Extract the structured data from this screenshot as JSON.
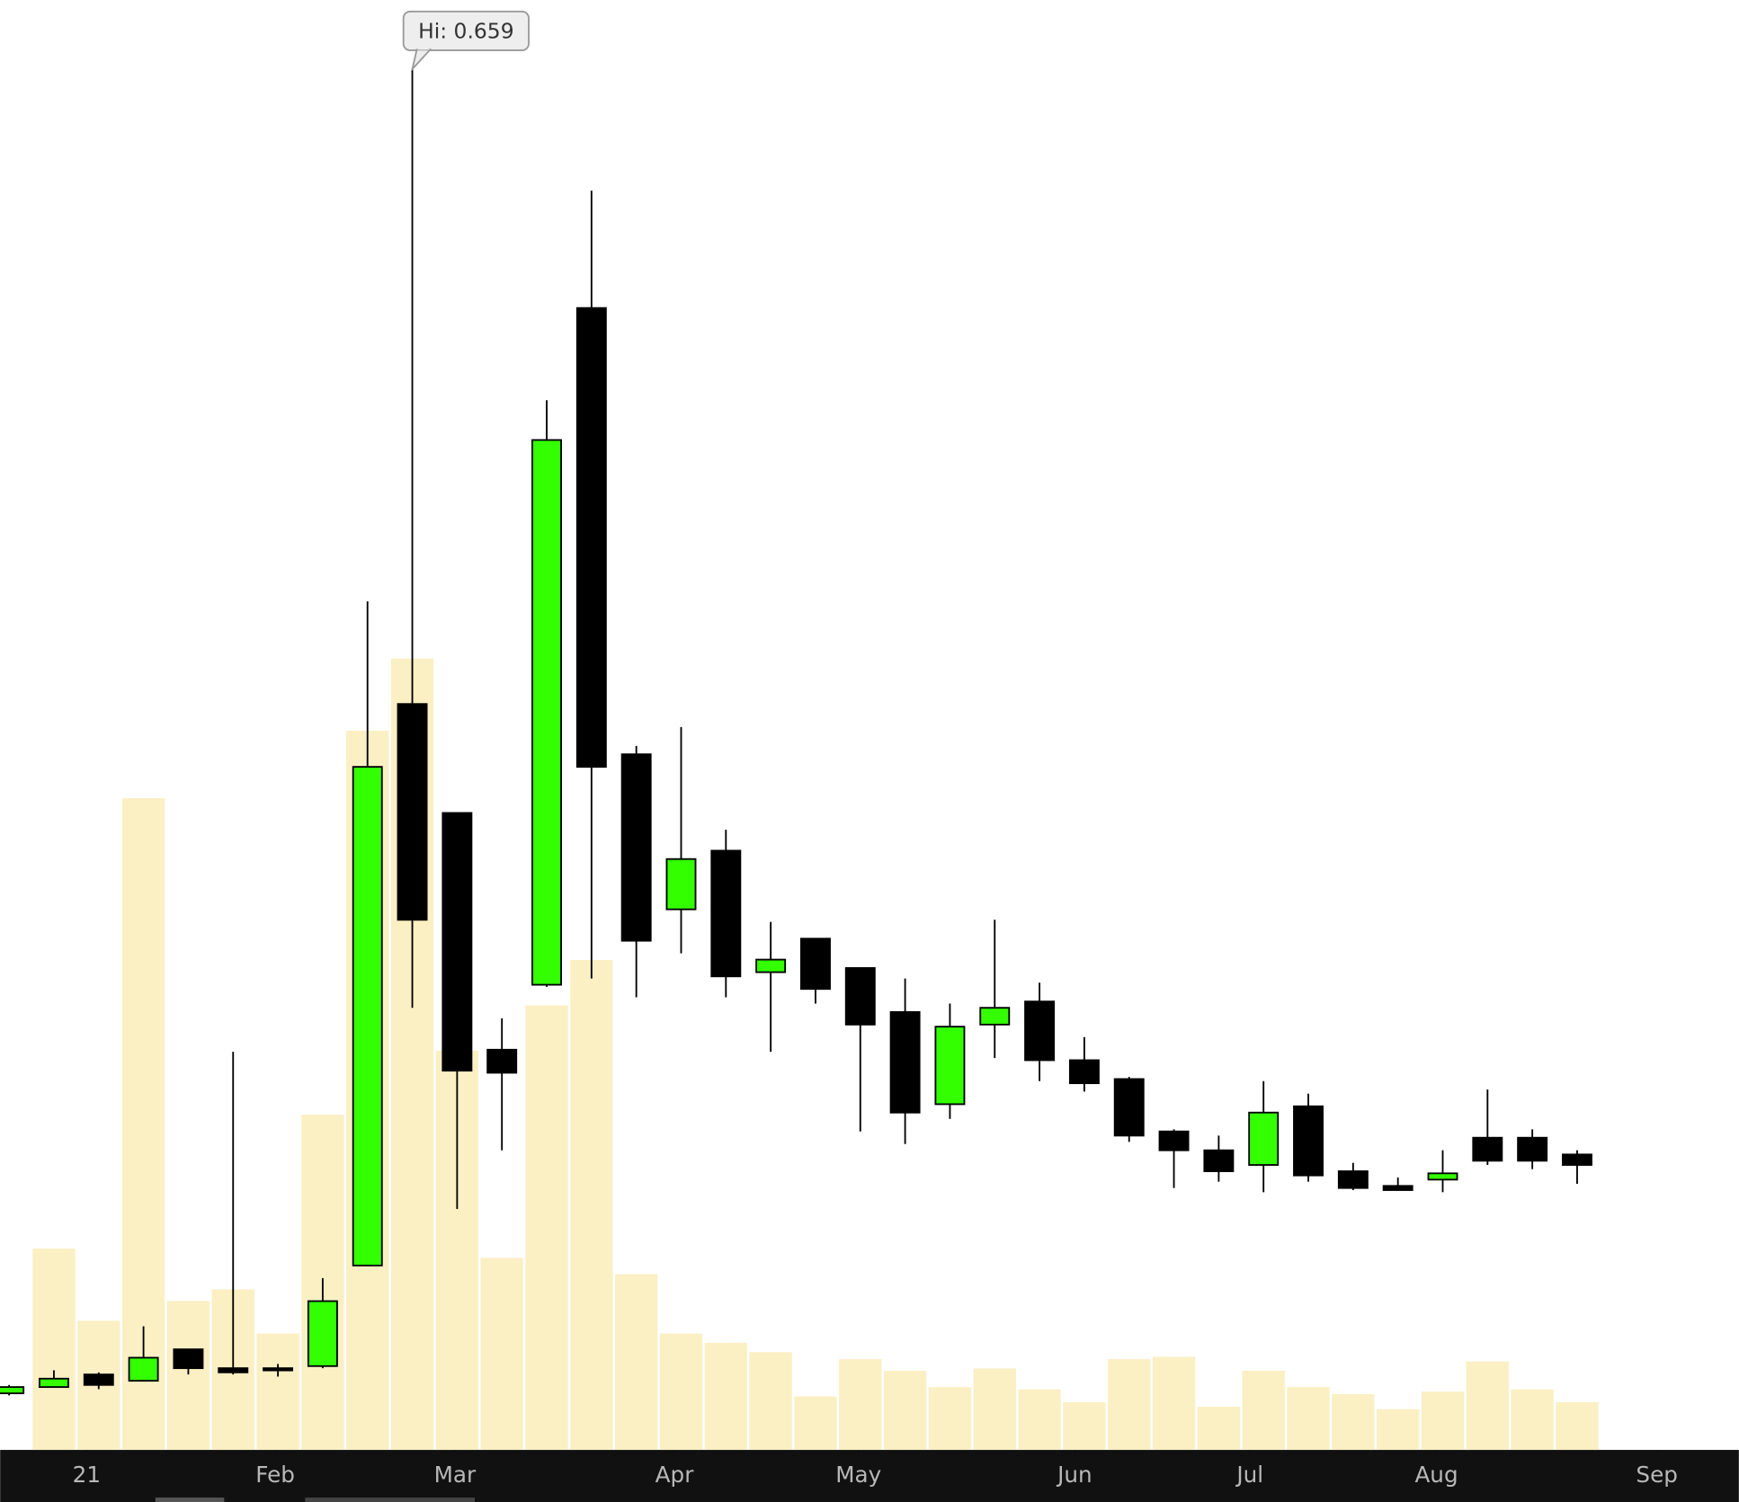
{
  "chart_data": {
    "type": "candlestick",
    "annotation": "Hi: 0.659",
    "x": [
      0,
      1,
      2,
      3,
      4,
      5,
      6,
      7,
      8,
      9,
      10,
      11,
      12,
      13,
      14,
      15,
      16,
      17,
      18,
      19,
      20,
      21,
      22,
      23,
      24,
      25,
      26,
      27,
      28,
      29,
      30,
      31,
      32,
      33,
      34,
      35
    ],
    "open": [
      0.027,
      0.03,
      0.036,
      0.033,
      0.048,
      0.039,
      0.039,
      0.04,
      0.088,
      0.356,
      0.304,
      0.191,
      0.222,
      0.545,
      0.332,
      0.258,
      0.286,
      0.228,
      0.244,
      0.23,
      0.209,
      0.165,
      0.203,
      0.214,
      0.186,
      0.177,
      0.152,
      0.143,
      0.136,
      0.164,
      0.133,
      0.126,
      0.129,
      0.149,
      0.149,
      0.141
    ],
    "high": [
      0.031,
      0.038,
      0.037,
      0.059,
      0.048,
      0.19,
      0.041,
      0.082,
      0.405,
      0.659,
      0.304,
      0.206,
      0.501,
      0.601,
      0.336,
      0.345,
      0.296,
      0.252,
      0.244,
      0.23,
      0.225,
      0.213,
      0.253,
      0.223,
      0.197,
      0.178,
      0.153,
      0.15,
      0.176,
      0.17,
      0.137,
      0.13,
      0.143,
      0.172,
      0.153,
      0.143
    ],
    "low": [
      0.026,
      0.03,
      0.029,
      0.033,
      0.036,
      0.036,
      0.035,
      0.039,
      0.088,
      0.211,
      0.115,
      0.143,
      0.221,
      0.225,
      0.216,
      0.237,
      0.216,
      0.19,
      0.213,
      0.152,
      0.146,
      0.158,
      0.187,
      0.176,
      0.171,
      0.147,
      0.125,
      0.128,
      0.123,
      0.128,
      0.124,
      0.124,
      0.123,
      0.136,
      0.134,
      0.127
    ],
    "close": [
      0.03,
      0.034,
      0.031,
      0.044,
      0.039,
      0.037,
      0.038,
      0.071,
      0.326,
      0.253,
      0.181,
      0.18,
      0.482,
      0.326,
      0.243,
      0.282,
      0.226,
      0.234,
      0.22,
      0.203,
      0.161,
      0.202,
      0.211,
      0.186,
      0.175,
      0.15,
      0.143,
      0.133,
      0.161,
      0.131,
      0.125,
      0.124,
      0.132,
      0.138,
      0.138,
      0.136
    ],
    "volume": [
      null,
      173,
      111,
      560,
      128,
      138,
      100,
      288,
      618,
      680,
      343,
      165,
      382,
      421,
      151,
      100,
      92,
      84,
      46,
      78,
      68,
      54,
      70,
      52,
      41,
      78,
      80,
      37,
      68,
      54,
      48,
      35,
      50,
      76,
      52,
      41
    ],
    "xlim": [
      -0.2,
      38.61
    ],
    "ylim": [
      0,
      0.692
    ],
    "volume_ylim": [
      0,
      1246
    ],
    "xticks": [
      {
        "value": 1.73,
        "label": "21"
      },
      {
        "value": 5.94,
        "label": "Feb"
      },
      {
        "value": 9.95,
        "label": "Mar"
      },
      {
        "value": 14.85,
        "label": "Apr"
      },
      {
        "value": 18.96,
        "label": "May"
      },
      {
        "value": 23.79,
        "label": "Jun"
      },
      {
        "value": 27.7,
        "label": "Jul"
      },
      {
        "value": 31.86,
        "label": "Aug"
      },
      {
        "value": 36.78,
        "label": "Sep"
      }
    ],
    "up_color": "#33ff00",
    "down_color": "#000000",
    "volume_color": "#fbefc4",
    "axis_color": "#111111"
  }
}
